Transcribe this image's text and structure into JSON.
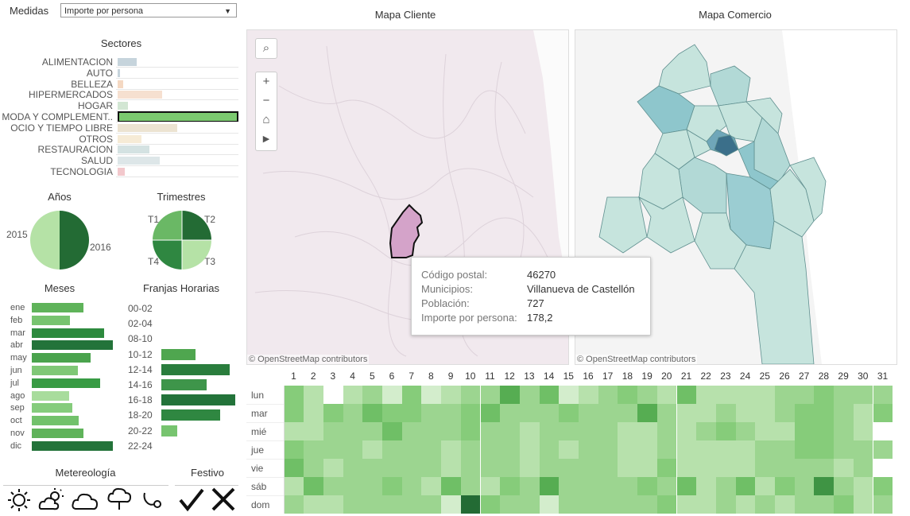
{
  "controls": {
    "medidas_label": "Medidas",
    "medidas_value": "Importe por persona"
  },
  "sectores": {
    "title": "Sectores",
    "items": [
      {
        "label": "ALIMENTACION",
        "value": 0.16,
        "color": "#c6d4dc"
      },
      {
        "label": "AUTO",
        "value": 0.02,
        "color": "#c6d4dc"
      },
      {
        "label": "BELLEZA",
        "value": 0.05,
        "color": "#f4d8c2"
      },
      {
        "label": "HIPERMERCADOS",
        "value": 0.38,
        "color": "#f6e0d0"
      },
      {
        "label": "HOGAR",
        "value": 0.09,
        "color": "#d2e6d3"
      },
      {
        "label": "MODA Y COMPLEMENT..",
        "value": 1.0,
        "color": "#7bc96f",
        "selected": true
      },
      {
        "label": "OCIO Y TIEMPO LIBRE",
        "value": 0.51,
        "color": "#ece3d1"
      },
      {
        "label": "OTROS",
        "value": 0.2,
        "color": "#f6ebd6"
      },
      {
        "label": "RESTAURACION",
        "value": 0.27,
        "color": "#d4e2e2"
      },
      {
        "label": "SALUD",
        "value": 0.36,
        "color": "#dde6e8"
      },
      {
        "label": "TECNOLOGIA",
        "value": 0.06,
        "color": "#f2c8cc"
      }
    ]
  },
  "anos": {
    "title": "Años",
    "labels": [
      "2015",
      "2016"
    ],
    "values": [
      0.5,
      0.5
    ]
  },
  "trimestres": {
    "title": "Trimestres",
    "labels": [
      "T1",
      "T2",
      "T3",
      "T4"
    ],
    "values": [
      0.25,
      0.25,
      0.25,
      0.25
    ]
  },
  "meses": {
    "title": "Meses",
    "items": [
      {
        "label": "ene",
        "value": 0.64,
        "color": "#5fb35a"
      },
      {
        "label": "feb",
        "value": 0.47,
        "color": "#77c46f"
      },
      {
        "label": "mar",
        "value": 0.89,
        "color": "#2d8a3e"
      },
      {
        "label": "abr",
        "value": 1.0,
        "color": "#23733a"
      },
      {
        "label": "may",
        "value": 0.73,
        "color": "#4aa34d"
      },
      {
        "label": "jun",
        "value": 0.57,
        "color": "#7fc876"
      },
      {
        "label": "jul",
        "value": 0.84,
        "color": "#389b44"
      },
      {
        "label": "ago",
        "value": 0.46,
        "color": "#a8dc9c"
      },
      {
        "label": "sep",
        "value": 0.5,
        "color": "#85cc7c"
      },
      {
        "label": "oct",
        "value": 0.58,
        "color": "#72c26b"
      },
      {
        "label": "nov",
        "value": 0.64,
        "color": "#5fb35a"
      },
      {
        "label": "dic",
        "value": 1.0,
        "color": "#23733a"
      }
    ]
  },
  "franjas": {
    "title": "Franjas Horarias",
    "items": [
      {
        "label": "00-02",
        "value": 0
      },
      {
        "label": "02-04",
        "value": 0
      },
      {
        "label": "08-10",
        "value": 0
      },
      {
        "label": "10-12",
        "value": 0.46,
        "color": "#4fa64f"
      },
      {
        "label": "12-14",
        "value": 0.93,
        "color": "#2a7d3d"
      },
      {
        "label": "14-16",
        "value": 0.61,
        "color": "#3e954a"
      },
      {
        "label": "16-18",
        "value": 1.0,
        "color": "#23733a"
      },
      {
        "label": "18-20",
        "value": 0.8,
        "color": "#2f8741"
      },
      {
        "label": "20-22",
        "value": 0.22,
        "color": "#77c46f"
      },
      {
        "label": "22-24",
        "value": 0
      }
    ]
  },
  "meteo": {
    "title": "Metereología",
    "icons": [
      "sun-icon",
      "partly-cloudy-icon",
      "cloud-icon",
      "rain-icon",
      "wind-icon"
    ]
  },
  "festivo": {
    "title": "Festivo",
    "icons": [
      "check-icon",
      "cross-icon"
    ]
  },
  "maps": {
    "cliente_title": "Mapa Cliente",
    "comercio_title": "Mapa Comercio",
    "attribution": "© OpenStreetMap contributors"
  },
  "tooltip": {
    "k1": "Código postal:",
    "v1": "46270",
    "k2": "Municipios:",
    "v2": "Villanueva de Castellón",
    "k3": "Población:",
    "v3": "727",
    "k4": "Importe por persona:",
    "v4": "178,2"
  },
  "heatmap": {
    "days": [
      "1",
      "2",
      "3",
      "4",
      "5",
      "6",
      "7",
      "8",
      "9",
      "10",
      "11",
      "12",
      "13",
      "14",
      "15",
      "16",
      "17",
      "18",
      "19",
      "20",
      "21",
      "22",
      "23",
      "24",
      "25",
      "26",
      "27",
      "28",
      "29",
      "30",
      "31"
    ],
    "weekdays": [
      "lun",
      "mar",
      "mié",
      "jue",
      "vie",
      "sáb",
      "dom"
    ],
    "levels": [
      [
        5,
        3,
        -1,
        3,
        4,
        2,
        5,
        2,
        3,
        4,
        4,
        7,
        4,
        6,
        2,
        3,
        4,
        5,
        4,
        3,
        6,
        3,
        3,
        3,
        3,
        4,
        4,
        5,
        4,
        4,
        4
      ],
      [
        5,
        3,
        5,
        4,
        6,
        5,
        5,
        4,
        4,
        5,
        6,
        4,
        4,
        4,
        5,
        4,
        4,
        4,
        7,
        4,
        3,
        3,
        4,
        3,
        3,
        4,
        5,
        5,
        4,
        3,
        5
      ],
      [
        3,
        3,
        4,
        4,
        4,
        6,
        4,
        4,
        4,
        5,
        4,
        4,
        3,
        4,
        4,
        4,
        4,
        3,
        3,
        4,
        3,
        4,
        5,
        4,
        3,
        3,
        5,
        5,
        4,
        3,
        -1
      ],
      [
        5,
        4,
        4,
        4,
        3,
        4,
        4,
        4,
        3,
        4,
        4,
        4,
        3,
        4,
        3,
        4,
        4,
        3,
        3,
        4,
        3,
        3,
        3,
        3,
        4,
        4,
        5,
        5,
        4,
        4,
        4
      ],
      [
        6,
        4,
        3,
        4,
        4,
        4,
        4,
        4,
        3,
        4,
        4,
        4,
        3,
        4,
        4,
        4,
        4,
        3,
        3,
        5,
        3,
        3,
        3,
        3,
        4,
        4,
        4,
        4,
        3,
        4,
        -1
      ],
      [
        3,
        6,
        4,
        4,
        4,
        5,
        4,
        3,
        6,
        4,
        3,
        5,
        4,
        7,
        4,
        4,
        4,
        4,
        5,
        4,
        6,
        3,
        4,
        6,
        3,
        5,
        4,
        8,
        4,
        3,
        5
      ],
      [
        4,
        3,
        3,
        4,
        4,
        4,
        4,
        4,
        2,
        9,
        5,
        4,
        4,
        2,
        4,
        4,
        4,
        4,
        4,
        5,
        3,
        3,
        4,
        3,
        4,
        3,
        4,
        4,
        5,
        3,
        4
      ]
    ],
    "palette": [
      "#ffffff",
      "#e8f5e4",
      "#d3edcc",
      "#b7e1ac",
      "#9cd590",
      "#86cc7a",
      "#6fbf66",
      "#56ad52",
      "#3f9444",
      "#236b34"
    ]
  }
}
